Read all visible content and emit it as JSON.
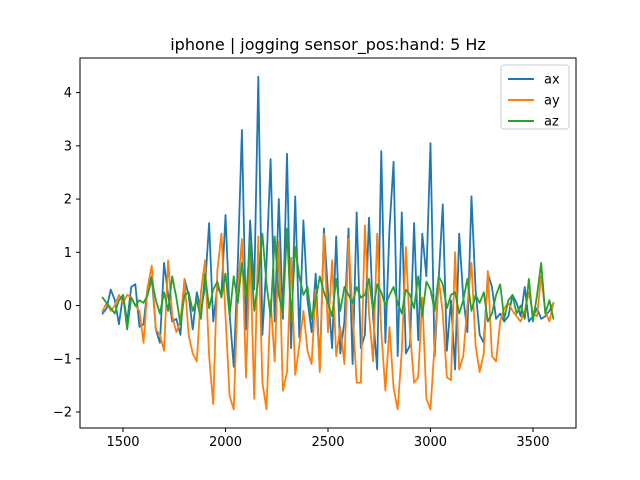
{
  "chart_data": {
    "type": "line",
    "title": "iphone | jogging sensor_pos:hand: 5 Hz",
    "xlabel": "",
    "ylabel": "",
    "xlim": [
      1290,
      3710
    ],
    "ylim": [
      -2.3,
      4.65
    ],
    "xticks": [
      1500,
      2000,
      2500,
      3000,
      3500
    ],
    "yticks": [
      -2,
      -1,
      0,
      1,
      2,
      3,
      4
    ],
    "grid": false,
    "legend": "top-right",
    "x": [
      1400,
      1420,
      1440,
      1460,
      1480,
      1500,
      1520,
      1540,
      1560,
      1580,
      1600,
      1620,
      1640,
      1660,
      1680,
      1700,
      1720,
      1740,
      1760,
      1780,
      1800,
      1820,
      1840,
      1860,
      1880,
      1900,
      1920,
      1940,
      1960,
      1980,
      2000,
      2020,
      2040,
      2060,
      2080,
      2100,
      2120,
      2140,
      2160,
      2180,
      2200,
      2220,
      2240,
      2260,
      2280,
      2300,
      2320,
      2340,
      2360,
      2380,
      2400,
      2420,
      2440,
      2460,
      2480,
      2500,
      2520,
      2540,
      2560,
      2580,
      2600,
      2620,
      2640,
      2660,
      2680,
      2700,
      2720,
      2740,
      2760,
      2780,
      2800,
      2820,
      2840,
      2860,
      2880,
      2900,
      2920,
      2940,
      2960,
      2980,
      3000,
      3020,
      3040,
      3060,
      3080,
      3100,
      3120,
      3140,
      3160,
      3180,
      3200,
      3220,
      3240,
      3260,
      3280,
      3300,
      3320,
      3340,
      3360,
      3380,
      3400,
      3420,
      3440,
      3460,
      3480,
      3500,
      3520,
      3540,
      3560,
      3580,
      3600
    ],
    "series": [
      {
        "name": "ax",
        "color": "#1f77b4",
        "values": [
          -0.15,
          -0.05,
          0.3,
          0.1,
          -0.35,
          0.2,
          -0.3,
          0.35,
          0.4,
          -0.4,
          -0.35,
          0.35,
          0.55,
          -0.45,
          -0.7,
          0.8,
          0.2,
          -0.3,
          -0.25,
          -0.55,
          0.5,
          0.2,
          -0.45,
          0.25,
          -0.1,
          0.35,
          1.55,
          -0.3,
          0.35,
          0.2,
          1.7,
          -0.15,
          -1.15,
          0.8,
          3.3,
          -0.45,
          1.6,
          0.3,
          4.3,
          -0.55,
          0.8,
          2.75,
          -0.3,
          2.0,
          -0.25,
          2.85,
          -0.8,
          2.05,
          -0.6,
          1.6,
          0.1,
          -0.5,
          0.6,
          -1.2,
          1.45,
          0.25,
          -0.8,
          1.3,
          -0.9,
          -0.3,
          1.45,
          -1.1,
          1.75,
          -0.8,
          -0.55,
          1.65,
          -0.2,
          -1.2,
          2.9,
          -0.7,
          1.45,
          2.7,
          -0.95,
          1.75,
          -0.9,
          -0.75,
          1.55,
          -0.65,
          1.35,
          0.55,
          3.05,
          -0.95,
          0.5,
          1.9,
          -0.85,
          0.1,
          -1.2,
          1.35,
          0.15,
          -0.5,
          2.05,
          0.3,
          -0.55,
          -0.7,
          0.6,
          0.35,
          -0.25,
          -0.15,
          -0.3,
          -0.2,
          0.2,
          0.05,
          -0.2,
          0.35,
          -0.3,
          -0.2,
          -0.05,
          -0.25,
          -0.2,
          -0.1,
          0.05
        ]
      },
      {
        "name": "ay",
        "color": "#ff7f0e",
        "values": [
          -0.1,
          0.05,
          -0.1,
          0.0,
          0.2,
          0.05,
          0.2,
          0.15,
          0.0,
          -0.1,
          -0.7,
          0.35,
          0.75,
          -0.45,
          -0.55,
          -0.85,
          0.85,
          -0.2,
          -0.5,
          -0.3,
          0.5,
          -0.55,
          -0.9,
          -1.05,
          0.25,
          0.85,
          -0.95,
          -1.85,
          0.65,
          1.35,
          -0.2,
          -1.7,
          -1.95,
          0.3,
          1.25,
          -1.35,
          1.05,
          -1.75,
          1.3,
          -1.45,
          -1.95,
          0.1,
          -1.05,
          1.2,
          -1.6,
          -1.25,
          0.9,
          -1.3,
          -0.75,
          -0.1,
          -0.85,
          -1.1,
          0.3,
          -1.25,
          1.35,
          -0.5,
          0.85,
          -0.95,
          -0.4,
          -1.1,
          1.25,
          -0.15,
          -1.45,
          -1.45,
          1.5,
          -0.15,
          -1.05,
          1.35,
          -0.5,
          -1.6,
          -0.4,
          -1.55,
          -1.95,
          -0.85,
          1.1,
          -0.5,
          -1.45,
          -1.35,
          0.15,
          -1.75,
          -1.95,
          -0.75,
          0.5,
          -0.15,
          -1.35,
          -1.4,
          1.0,
          -1.2,
          -0.95,
          0.0,
          0.8,
          -0.75,
          -1.25,
          -0.9,
          0.65,
          -0.95,
          -1.05,
          -0.3,
          -0.05,
          0.05,
          -0.1,
          -0.2,
          -0.3,
          -0.1,
          0.25,
          -0.15,
          -0.2,
          0.55,
          -0.1,
          -0.3,
          0.05
        ]
      },
      {
        "name": "az",
        "color": "#2ca02c",
        "values": [
          0.15,
          0.05,
          -0.05,
          -0.15,
          0.1,
          0.2,
          -0.45,
          0.15,
          0.0,
          0.1,
          0.05,
          0.2,
          0.5,
          0.1,
          -0.15,
          0.25,
          -0.1,
          0.55,
          0.15,
          -0.35,
          0.2,
          0.25,
          -0.1,
          0.1,
          -0.25,
          0.6,
          -0.05,
          0.3,
          0.45,
          0.15,
          0.6,
          -0.2,
          0.55,
          0.05,
          0.8,
          0.15,
          1.2,
          -0.1,
          0.5,
          1.35,
          0.4,
          -0.2,
          1.3,
          0.2,
          -0.15,
          1.45,
          -0.3,
          1.1,
          0.55,
          0.2,
          0.35,
          -0.25,
          0.1,
          0.55,
          0.25,
          0.05,
          -0.2,
          0.5,
          -0.1,
          0.35,
          0.2,
          0.05,
          0.35,
          0.15,
          0.2,
          0.5,
          -0.1,
          0.4,
          0.25,
          0.0,
          0.2,
          0.35,
          0.05,
          -0.15,
          0.3,
          0.2,
          -0.05,
          0.55,
          -0.2,
          0.45,
          0.3,
          -0.1,
          0.55,
          0.4,
          -0.05,
          0.2,
          0.25,
          -0.15,
          0.1,
          0.5,
          -0.1,
          0.2,
          0.05,
          0.25,
          -0.3,
          -0.15,
          0.2,
          0.4,
          -0.25,
          0.1,
          0.2,
          -0.15,
          0.0,
          -0.25,
          0.5,
          -0.3,
          0.2,
          0.8,
          -0.15,
          0.1,
          -0.25
        ]
      }
    ]
  }
}
